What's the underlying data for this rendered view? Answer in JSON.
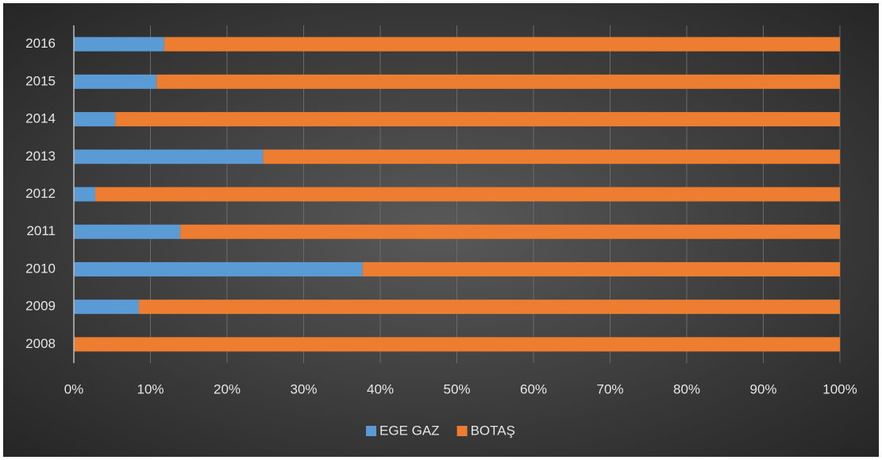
{
  "chart_data": {
    "type": "stacked_bar_horizontal",
    "categories": [
      "2008",
      "2009",
      "2010",
      "2011",
      "2012",
      "2013",
      "2014",
      "2015",
      "2016"
    ],
    "series": [
      {
        "name": "EGE GAZ",
        "color": "#5b9bd5",
        "values": [
          0,
          8.5,
          37.7,
          13.9,
          2.8,
          24.7,
          5.4,
          10.8,
          11.8
        ]
      },
      {
        "name": "BOTAŞ",
        "color": "#ed7d31",
        "values": [
          100,
          91.5,
          62.3,
          86.1,
          97.2,
          75.3,
          94.6,
          89.2,
          88.2
        ]
      }
    ],
    "xlim": [
      0,
      100
    ],
    "xticks": [
      {
        "value": 0,
        "label": "0%"
      },
      {
        "value": 10,
        "label": "10%"
      },
      {
        "value": 20,
        "label": "20%"
      },
      {
        "value": 30,
        "label": "30%"
      },
      {
        "value": 40,
        "label": "40%"
      },
      {
        "value": 50,
        "label": "50%"
      },
      {
        "value": 60,
        "label": "60%"
      },
      {
        "value": 70,
        "label": "70%"
      },
      {
        "value": 80,
        "label": "80%"
      },
      {
        "value": 90,
        "label": "90%"
      },
      {
        "value": 100,
        "label": "100%"
      }
    ],
    "grid": true,
    "legend": "bottom"
  }
}
